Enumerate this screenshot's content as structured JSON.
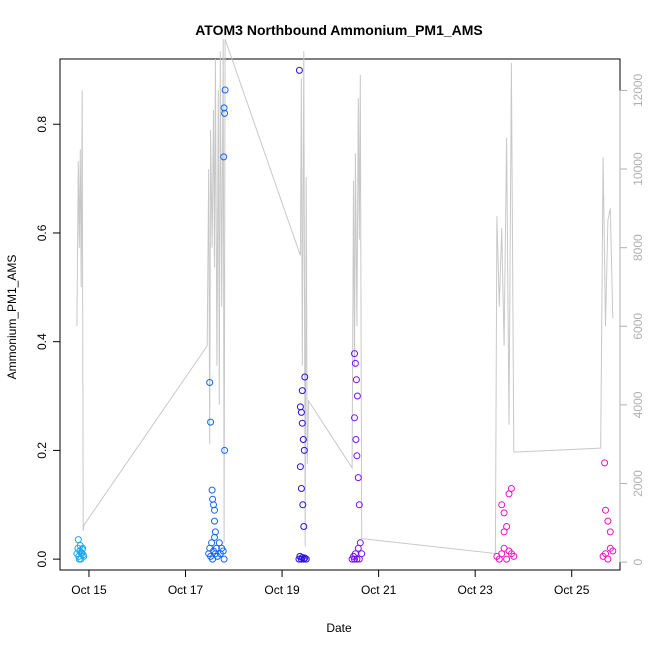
{
  "chart_data": {
    "type": "scatter",
    "title": "ATOM3 Northbound Ammonium_PM1_AMS",
    "xlabel": "Date",
    "ylabel": "Ammonium_PM1_AMS",
    "xlim": [
      14.4,
      26.0
    ],
    "ylim": [
      -0.02,
      0.92
    ],
    "y2lim": [
      -200,
      12800
    ],
    "x_ticks": [
      15,
      17,
      19,
      21,
      23,
      25
    ],
    "x_tick_labels": [
      "Oct 15",
      "Oct 17",
      "Oct 19",
      "Oct 21",
      "Oct 23",
      "Oct 25"
    ],
    "y_ticks": [
      0.0,
      0.2,
      0.4,
      0.6,
      0.8
    ],
    "y_tick_labels": [
      "0.0",
      "0.2",
      "0.4",
      "0.6",
      "0.8"
    ],
    "y2_ticks": [
      0,
      2000,
      4000,
      6000,
      8000,
      10000,
      12000
    ],
    "y2_tick_labels": [
      "0",
      "2000",
      "4000",
      "6000",
      "8000",
      "10000",
      "12000"
    ],
    "grid": false,
    "legend": "none",
    "colors": {
      "altitude_line": "#c8c8c8",
      "right_axis": "#b0b0b0",
      "point_gradient": [
        "#1aa9f0",
        "#1565f0",
        "#2a10e0",
        "#7a10f0",
        "#c010e8",
        "#f010c8"
      ]
    },
    "series": [
      {
        "color": "#1aa9f0",
        "x": [
          14.75,
          14.77,
          14.79,
          14.81,
          14.83,
          14.85,
          14.87,
          14.89,
          14.78,
          14.82,
          14.86,
          14.8,
          14.84,
          14.88
        ],
        "y": [
          0.01,
          0.02,
          0.005,
          0.015,
          0.0,
          0.01,
          0.02,
          0.005,
          0.036,
          0.025,
          0.018,
          0.0,
          0.012,
          0.008
        ]
      },
      {
        "color": "#1565f0",
        "x": [
          17.48,
          17.5,
          17.52,
          17.54,
          17.56,
          17.58,
          17.6,
          17.62,
          17.64,
          17.66,
          17.7,
          17.72,
          17.75,
          17.78,
          17.8,
          17.5,
          17.52,
          17.55,
          17.58,
          17.6,
          17.62,
          17.82,
          17.8,
          17.81,
          17.79,
          17.81,
          17.56,
          17.6
        ],
        "y": [
          0.01,
          0.02,
          0.005,
          0.03,
          0.0,
          0.015,
          0.04,
          0.01,
          0.02,
          0.005,
          0.03,
          0.01,
          0.02,
          0.015,
          0.0,
          0.325,
          0.252,
          0.127,
          0.1,
          0.07,
          0.05,
          0.863,
          0.83,
          0.82,
          0.74,
          0.2,
          0.11,
          0.09
        ]
      },
      {
        "color": "#2a10e0",
        "x": [
          19.35,
          19.37,
          19.4,
          19.42,
          19.45,
          19.47,
          19.5,
          19.38,
          19.4,
          19.42,
          19.44,
          19.46,
          19.38,
          19.4,
          19.43,
          19.45,
          19.36,
          19.47,
          19.42
        ],
        "y": [
          0.0,
          0.005,
          0.0,
          0.003,
          0.0,
          0.002,
          0.0,
          0.28,
          0.27,
          0.25,
          0.22,
          0.2,
          0.17,
          0.13,
          0.1,
          0.06,
          0.899,
          0.335,
          0.31
        ]
      },
      {
        "color": "#7a10f0",
        "x": [
          20.45,
          20.48,
          20.5,
          20.52,
          20.55,
          20.58,
          20.6,
          20.62,
          20.65,
          20.5,
          20.52,
          20.54,
          20.56,
          20.5,
          20.53,
          20.55,
          20.58,
          20.6
        ],
        "y": [
          0.0,
          0.005,
          0.0,
          0.01,
          0.0,
          0.02,
          0.0,
          0.03,
          0.01,
          0.378,
          0.36,
          0.33,
          0.3,
          0.26,
          0.22,
          0.19,
          0.15,
          0.1
        ]
      },
      {
        "color": "#f010c8",
        "x": [
          23.45,
          23.5,
          23.55,
          23.6,
          23.65,
          23.7,
          23.75,
          23.8,
          23.55,
          23.6,
          23.65,
          23.7,
          23.75,
          23.6,
          25.65,
          25.7,
          25.75,
          25.8,
          25.85,
          25.7,
          25.75,
          25.8,
          25.68
        ],
        "y": [
          0.005,
          0.0,
          0.01,
          0.02,
          0.0,
          0.015,
          0.01,
          0.005,
          0.1,
          0.085,
          0.06,
          0.12,
          0.13,
          0.05,
          0.005,
          0.01,
          0.0,
          0.02,
          0.015,
          0.09,
          0.07,
          0.05,
          0.177
        ]
      }
    ],
    "altitude_line": {
      "x": [
        14.75,
        14.78,
        14.8,
        14.82,
        14.84,
        14.86,
        14.88,
        14.9,
        17.45,
        17.48,
        17.5,
        17.52,
        17.55,
        17.58,
        17.6,
        17.62,
        17.65,
        17.68,
        17.7,
        17.72,
        17.75,
        17.78,
        17.8,
        17.82,
        19.38,
        19.4,
        19.42,
        19.45,
        19.48,
        19.5,
        19.52,
        19.55,
        20.45,
        20.48,
        20.5,
        20.52,
        20.55,
        20.58,
        20.6,
        20.62,
        20.65,
        23.42,
        23.45,
        23.5,
        23.55,
        23.6,
        23.65,
        23.7,
        23.75,
        23.8,
        25.6,
        25.65,
        25.7,
        25.75,
        25.8,
        25.85
      ],
      "y": [
        6000,
        10200,
        8000,
        10500,
        7000,
        12000,
        800,
        950,
        5500,
        10000,
        3000,
        11000,
        8000,
        11500,
        7500,
        12800,
        5000,
        12000,
        4000,
        13000,
        6500,
        13300,
        500,
        13300,
        7800,
        12300,
        5000,
        13000,
        400,
        9800,
        2500,
        4100,
        2400,
        9700,
        5000,
        10400,
        6000,
        11800,
        8200,
        12400,
        600,
        220,
        8800,
        6500,
        8500,
        5500,
        10800,
        3500,
        12700,
        2800,
        2900,
        10300,
        6000,
        8700,
        9000,
        6200
      ]
    }
  }
}
